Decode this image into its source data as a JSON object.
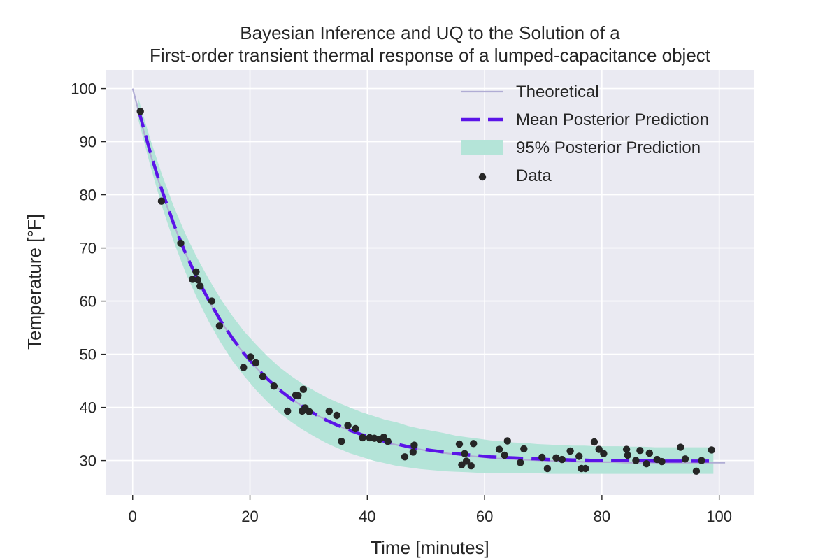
{
  "chart_data": {
    "type": "line",
    "title": "Bayesian Inference and UQ to the Solution of a",
    "subtitle": "First-order transient thermal response of a lumped-capacitance object",
    "xlabel": "Time [minutes]",
    "ylabel": "Temperature [°F]",
    "xlim": [
      -4.5,
      106
    ],
    "ylim": [
      23.5,
      103.5
    ],
    "xticks": [
      0,
      20,
      40,
      60,
      80,
      100
    ],
    "yticks": [
      30,
      40,
      50,
      60,
      70,
      80,
      90,
      100
    ],
    "xtick_labels": [
      "0",
      "20",
      "40",
      "60",
      "80",
      "100"
    ],
    "ytick_labels": [
      "30",
      "40",
      "50",
      "60",
      "70",
      "80",
      "90",
      "100"
    ],
    "grid": true,
    "legend_position": "top-right",
    "legend": [
      "Theoretical",
      "Mean Posterior Prediction",
      "95% Posterior Prediction",
      "Data"
    ],
    "colors": {
      "background": "#eaeaf2",
      "grid": "#ffffff",
      "theoretical": "#b0acd4",
      "mean": "#5b14e8",
      "band": "#b4e4d8",
      "data": "#262626"
    },
    "series": [
      {
        "name": "Theoretical",
        "kind": "line",
        "x": [
          0,
          2,
          4,
          6,
          8,
          10,
          12,
          14,
          16,
          18,
          20,
          22,
          24,
          26,
          28,
          30,
          32,
          34,
          36,
          38,
          40,
          42,
          44,
          46,
          48,
          50,
          52,
          54,
          56,
          58,
          60,
          62,
          64,
          66,
          68,
          70,
          72,
          74,
          76,
          78,
          80,
          82,
          84,
          86,
          88,
          90,
          92,
          94,
          96,
          98,
          100,
          101
        ],
        "y": [
          100.0,
          91.5,
          84.0,
          77.4,
          71.6,
          66.5,
          62.0,
          58.1,
          54.6,
          51.5,
          48.8,
          46.4,
          44.3,
          42.5,
          40.9,
          39.5,
          38.2,
          37.1,
          36.1,
          35.3,
          34.5,
          33.8,
          33.2,
          32.7,
          32.3,
          31.9,
          31.6,
          31.3,
          31.0,
          30.8,
          30.6,
          30.4,
          30.3,
          30.2,
          30.1,
          30.0,
          29.9,
          29.8,
          29.8,
          29.7,
          29.7,
          29.7,
          29.6,
          29.6,
          29.6,
          29.6,
          29.6,
          29.6,
          29.6,
          29.6,
          29.6,
          29.6
        ]
      },
      {
        "name": "Mean Posterior Prediction",
        "kind": "dashed-line",
        "x": [
          1,
          3,
          5,
          7,
          9,
          11,
          13,
          15,
          17,
          19,
          21,
          23,
          25,
          27,
          29,
          31,
          33,
          35,
          37,
          39,
          41,
          43,
          45,
          47,
          49,
          51,
          53,
          55,
          57,
          59,
          61,
          63,
          65,
          67,
          69,
          71,
          73,
          75,
          77,
          79,
          81,
          83,
          85,
          87,
          89,
          91,
          93,
          95,
          97,
          99
        ],
        "y": [
          96.0,
          88.0,
          80.8,
          74.5,
          69.0,
          64.3,
          60.1,
          56.3,
          53.0,
          50.1,
          47.6,
          45.3,
          43.3,
          41.6,
          40.1,
          38.8,
          37.6,
          36.6,
          35.7,
          34.9,
          34.2,
          33.6,
          33.1,
          32.6,
          32.2,
          31.9,
          31.6,
          31.3,
          31.1,
          30.9,
          30.7,
          30.6,
          30.5,
          30.4,
          30.3,
          30.2,
          30.2,
          30.1,
          30.1,
          30.0,
          30.0,
          30.0,
          30.0,
          30.0,
          29.9,
          29.9,
          29.9,
          29.9,
          29.9,
          29.9
        ]
      },
      {
        "name": "95% Posterior Prediction",
        "kind": "band",
        "x": [
          1,
          3,
          5,
          7,
          9,
          11,
          13,
          15,
          17,
          19,
          21,
          23,
          25,
          27,
          29,
          31,
          33,
          35,
          37,
          39,
          41,
          43,
          45,
          47,
          49,
          51,
          53,
          55,
          57,
          59,
          61,
          63,
          65,
          67,
          69,
          71,
          73,
          75,
          77,
          79,
          81,
          83,
          85,
          87,
          89,
          91,
          93,
          95,
          97,
          99
        ],
        "lower": [
          94.0,
          85.5,
          77.8,
          71.2,
          65.4,
          60.5,
          56.1,
          52.2,
          48.8,
          45.9,
          43.3,
          41.0,
          39.0,
          37.3,
          35.8,
          34.5,
          33.3,
          32.3,
          31.4,
          30.7,
          30.0,
          29.5,
          29.0,
          28.7,
          28.4,
          28.2,
          28.0,
          27.9,
          27.8,
          27.7,
          27.7,
          27.6,
          27.6,
          27.6,
          27.6,
          27.5,
          27.5,
          27.5,
          27.5,
          27.5,
          27.5,
          27.5,
          27.5,
          27.5,
          27.5,
          27.5,
          27.5,
          27.5,
          27.5,
          27.5
        ],
        "upper": [
          98.0,
          90.5,
          83.8,
          77.8,
          72.6,
          68.1,
          64.1,
          60.4,
          57.2,
          54.3,
          51.9,
          49.6,
          47.6,
          45.9,
          44.4,
          43.1,
          41.9,
          40.9,
          40.0,
          39.1,
          38.4,
          37.7,
          37.2,
          36.5,
          36.0,
          35.6,
          35.2,
          34.7,
          34.4,
          34.1,
          33.8,
          33.6,
          33.4,
          33.3,
          33.1,
          33.0,
          32.9,
          32.8,
          32.8,
          32.7,
          32.7,
          32.7,
          32.6,
          32.6,
          32.5,
          32.5,
          32.5,
          32.5,
          32.5,
          32.5
        ]
      },
      {
        "name": "Data",
        "kind": "scatter",
        "x": [
          1.3,
          4.9,
          8.2,
          10.2,
          10.8,
          11.1,
          11.5,
          13.5,
          14.8,
          18.9,
          20.1,
          21.0,
          22.2,
          24.1,
          26.4,
          27.8,
          28.2,
          28.9,
          29.1,
          29.4,
          30.1,
          33.5,
          34.8,
          35.6,
          36.7,
          38.0,
          39.2,
          40.4,
          41.2,
          42.1,
          42.8,
          43.5,
          46.4,
          47.8,
          48.0,
          55.7,
          56.1,
          56.6,
          56.9,
          57.7,
          58.1,
          62.5,
          63.4,
          63.9,
          66.1,
          66.7,
          69.8,
          70.7,
          72.2,
          73.2,
          74.6,
          76.1,
          76.5,
          77.2,
          78.7,
          79.5,
          80.3,
          84.2,
          84.4,
          85.8,
          86.5,
          87.6,
          88.1,
          89.4,
          90.2,
          93.4,
          94.2,
          96.1,
          97.0,
          98.7
        ],
        "y": [
          95.7,
          78.8,
          70.9,
          64.1,
          65.5,
          64.0,
          62.8,
          60.0,
          55.3,
          47.5,
          49.5,
          48.4,
          45.8,
          44.0,
          39.3,
          42.3,
          42.2,
          39.3,
          43.4,
          39.9,
          39.2,
          39.3,
          38.5,
          33.6,
          36.6,
          36.0,
          34.3,
          34.3,
          34.2,
          34.0,
          34.4,
          33.6,
          30.7,
          31.6,
          32.9,
          33.1,
          29.2,
          31.3,
          29.9,
          29.0,
          33.2,
          32.1,
          31.0,
          33.7,
          29.6,
          32.2,
          30.6,
          28.5,
          30.5,
          30.2,
          31.8,
          30.8,
          28.5,
          28.5,
          33.5,
          32.1,
          31.3,
          32.1,
          31.0,
          30.0,
          31.9,
          29.4,
          31.4,
          30.2,
          29.8,
          32.5,
          30.3,
          28.0,
          30.0,
          32.0
        ]
      }
    ]
  }
}
